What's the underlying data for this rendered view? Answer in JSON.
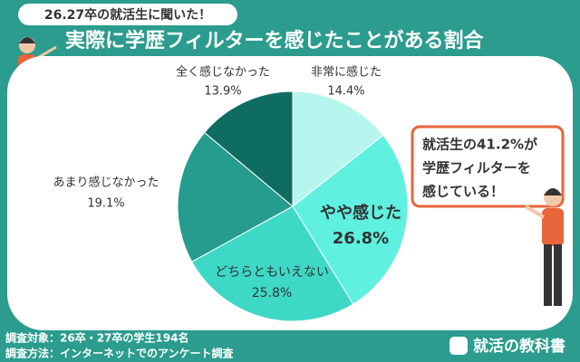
{
  "header": {
    "tag": "26.27卒の就活生に聞いた！",
    "title": "実際に学歴フィルターを感じたことがある割合"
  },
  "chart_data": {
    "type": "pie",
    "categories": [
      "非常に感じた",
      "やや感じた",
      "どちらともいえない",
      "あまり感じなかった",
      "全く感じなかった"
    ],
    "values": [
      14.4,
      26.8,
      25.8,
      19.1,
      13.9
    ],
    "value_labels": [
      "14.4%",
      "26.8%",
      "25.8%",
      "19.1%",
      "13.9%"
    ],
    "colors": [
      "#b6f6ef",
      "#5ff0e0",
      "#3ed8c6",
      "#259c8d",
      "#0e6c60"
    ]
  },
  "callout": {
    "lines": [
      "就活生の41.2%が",
      "学歴フィルターを",
      "感じている！"
    ]
  },
  "footer": {
    "notes": [
      "調査対象：26卒・27卒の学生194名",
      "調査方法：インターネットでのアンケート調査"
    ],
    "logo": "就活の教科書"
  }
}
